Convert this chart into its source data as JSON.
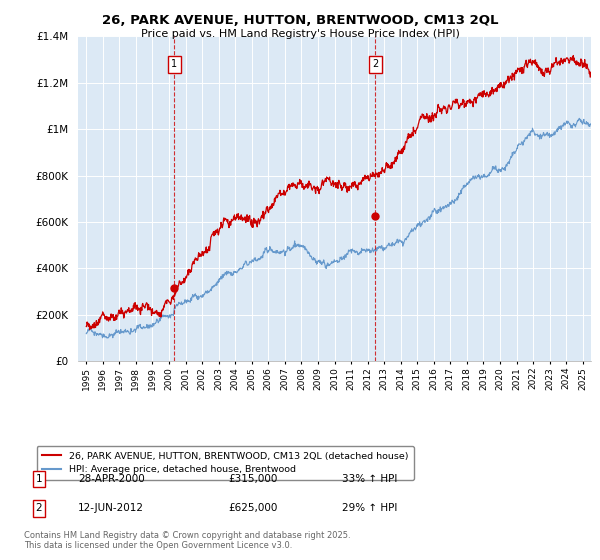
{
  "title_line1": "26, PARK AVENUE, HUTTON, BRENTWOOD, CM13 2QL",
  "title_line2": "Price paid vs. HM Land Registry's House Price Index (HPI)",
  "legend_label_red": "26, PARK AVENUE, HUTTON, BRENTWOOD, CM13 2QL (detached house)",
  "legend_label_blue": "HPI: Average price, detached house, Brentwood",
  "annotation1_label": "1",
  "annotation1_date": "28-APR-2000",
  "annotation1_price": "£315,000",
  "annotation1_hpi": "33% ↑ HPI",
  "annotation2_label": "2",
  "annotation2_date": "12-JUN-2012",
  "annotation2_price": "£625,000",
  "annotation2_hpi": "29% ↑ HPI",
  "footer": "Contains HM Land Registry data © Crown copyright and database right 2025.\nThis data is licensed under the Open Government Licence v3.0.",
  "sale1_x": 2000.32,
  "sale1_y": 315000,
  "sale2_x": 2012.45,
  "sale2_y": 625000,
  "vline1_x": 2000.32,
  "vline2_x": 2012.45,
  "ylim": [
    0,
    1400000
  ],
  "xlim": [
    1994.5,
    2025.5
  ],
  "color_red": "#cc0000",
  "color_blue": "#6699cc",
  "color_vline": "#cc0000",
  "background_color": "#ffffff",
  "plot_bg_color": "#dce9f5",
  "grid_color": "#ffffff",
  "yticks": [
    0,
    200000,
    400000,
    600000,
    800000,
    1000000,
    1200000,
    1400000
  ]
}
